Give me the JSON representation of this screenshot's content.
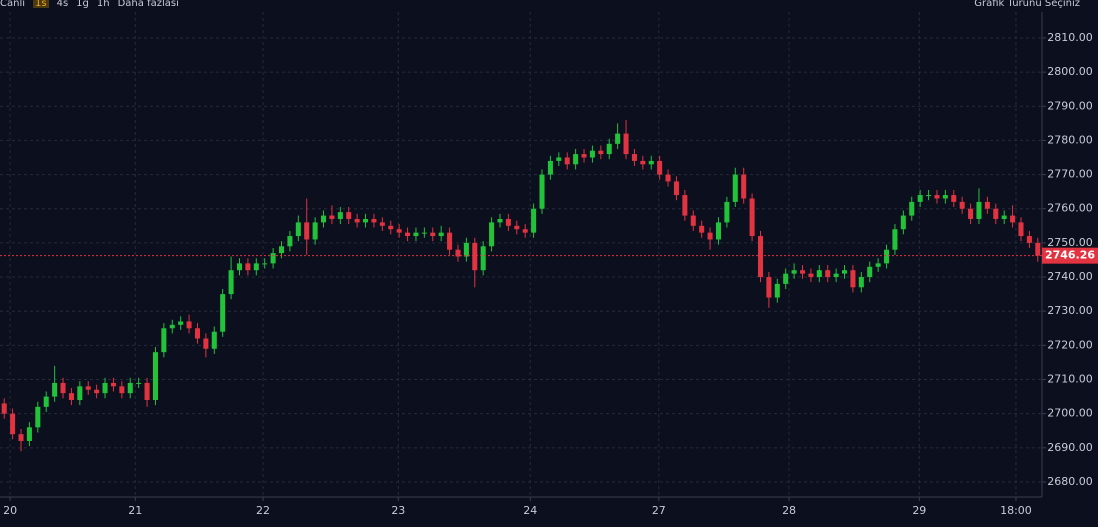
{
  "toolbar": {
    "items": [
      "Canlı",
      "1s",
      "4s",
      "1g",
      "1h",
      "Daha fazlası"
    ],
    "chart_type": "Grafik Türünü Seçiniz"
  },
  "chart_data": {
    "type": "candlestick",
    "up_color": "#22c33a",
    "down_color": "#e23341",
    "grid": true,
    "xlim": [
      0,
      124
    ],
    "xticks": [
      {
        "value": 1.2,
        "label": "20"
      },
      {
        "value": 16.1,
        "label": "21"
      },
      {
        "value": 31.3,
        "label": "22"
      },
      {
        "value": 47.4,
        "label": "23"
      },
      {
        "value": 63.1,
        "label": "24"
      },
      {
        "value": 78.4,
        "label": "27"
      },
      {
        "value": 93.9,
        "label": "28"
      },
      {
        "value": 109.4,
        "label": "29"
      },
      {
        "value": 120.9,
        "label": "18:00"
      }
    ],
    "ylim": [
      2675.6,
      2817.6
    ],
    "yticks": [
      {
        "value": 2680,
        "label": "2680.00"
      },
      {
        "value": 2690,
        "label": "2690.00"
      },
      {
        "value": 2700,
        "label": "2700.00"
      },
      {
        "value": 2710,
        "label": "2710.00"
      },
      {
        "value": 2720,
        "label": "2720.00"
      },
      {
        "value": 2730,
        "label": "2730.00"
      },
      {
        "value": 2740,
        "label": "2740.00"
      },
      {
        "value": 2750,
        "label": "2750.00"
      },
      {
        "value": 2760,
        "label": "2760.00"
      },
      {
        "value": 2770,
        "label": "2770.00"
      },
      {
        "value": 2780,
        "label": "2780.00"
      },
      {
        "value": 2790,
        "label": "2790.00"
      },
      {
        "value": 2800,
        "label": "2800.00"
      },
      {
        "value": 2810,
        "label": "2810.00"
      }
    ],
    "open": [
      2703,
      2700,
      2694,
      2692,
      2696,
      2702,
      2705,
      2709,
      2706,
      2704,
      2708,
      2707,
      2706,
      2709,
      2708,
      2706,
      2709,
      2709,
      2704,
      2718,
      2725,
      2726,
      2727,
      2725,
      2722,
      2719,
      2724,
      2735,
      2742,
      2744,
      2742,
      2744,
      2744,
      2747,
      2749,
      2752,
      2756,
      2751,
      2756,
      2758,
      2757,
      2759,
      2757,
      2756,
      2757,
      2756,
      2755,
      2754,
      2753,
      2752,
      2753,
      2753,
      2752,
      2753,
      2748,
      2746,
      2750,
      2742,
      2749,
      2756,
      2757,
      2755,
      2754,
      2753,
      2760,
      2770,
      2774,
      2775,
      2773,
      2776,
      2775,
      2777,
      2776,
      2779,
      2782,
      2776,
      2774,
      2773,
      2774,
      2770,
      2768,
      2764,
      2758,
      2755,
      2753,
      2751,
      2756,
      2762,
      2770,
      2763,
      2752,
      2740,
      2734,
      2738,
      2741,
      2742,
      2741,
      2740,
      2742,
      2740,
      2741,
      2742,
      2737,
      2740,
      2743,
      2744,
      2748,
      2754,
      2758,
      2762,
      2764,
      2764,
      2763,
      2764,
      2762,
      2760,
      2757,
      2762,
      2760,
      2757,
      2758,
      2756,
      2752,
      2750
    ],
    "high": [
      2704.5,
      2701.5,
      2695.5,
      2697.5,
      2703.5,
      2706.5,
      2714,
      2710.5,
      2707.5,
      2709.5,
      2709.5,
      2708.5,
      2710.5,
      2710.5,
      2709.5,
      2710.5,
      2710.5,
      2710.5,
      2719.5,
      2726.5,
      2727.5,
      2728.5,
      2729,
      2726.5,
      2723.5,
      2725.5,
      2736.5,
      2746,
      2745.5,
      2745.5,
      2745.5,
      2745.5,
      2748.5,
      2750.5,
      2753.5,
      2758,
      2763,
      2757.5,
      2759.5,
      2761,
      2760.5,
      2760.5,
      2758.5,
      2758.5,
      2758.5,
      2757.5,
      2756.5,
      2755.5,
      2754.5,
      2754.5,
      2754.5,
      2754.5,
      2755,
      2754.5,
      2749.5,
      2751.5,
      2751.5,
      2750.5,
      2757.5,
      2758.5,
      2758.5,
      2756.5,
      2755.5,
      2761.5,
      2771.5,
      2775.5,
      2776.5,
      2776.5,
      2777.5,
      2777.5,
      2778.5,
      2778.5,
      2780.5,
      2785,
      2786,
      2777.5,
      2775.5,
      2775.5,
      2775.5,
      2771.5,
      2769.5,
      2765.5,
      2759.5,
      2756.5,
      2754.5,
      2757.5,
      2763.5,
      2772,
      2772,
      2764.5,
      2753.5,
      2741.5,
      2739.5,
      2742.5,
      2744,
      2743.5,
      2742.5,
      2743.5,
      2743.5,
      2742.5,
      2743.5,
      2743.5,
      2741.5,
      2744.5,
      2745.5,
      2749.5,
      2755.5,
      2759.5,
      2763.5,
      2765.5,
      2765.5,
      2765.5,
      2765.5,
      2765.5,
      2763.5,
      2761.5,
      2766,
      2763.5,
      2761.5,
      2759.5,
      2761,
      2757.5,
      2753.5,
      2751.5
    ],
    "low": [
      2698.5,
      2692.5,
      2689,
      2690.5,
      2694.5,
      2700.5,
      2703.5,
      2704.5,
      2702.5,
      2702.5,
      2705.5,
      2704.5,
      2704.5,
      2706.5,
      2704.5,
      2704.5,
      2707.5,
      2702,
      2702.5,
      2716.5,
      2723.5,
      2724.5,
      2723.5,
      2720.5,
      2716.5,
      2717.5,
      2722.5,
      2733.5,
      2740.5,
      2740.5,
      2740.5,
      2742.5,
      2742.5,
      2745.5,
      2747.5,
      2750.5,
      2746.5,
      2749.5,
      2754.5,
      2755.5,
      2755.5,
      2755.5,
      2754.5,
      2754.5,
      2754.5,
      2753.5,
      2752.5,
      2751.5,
      2750.5,
      2750.5,
      2751.5,
      2750.5,
      2750.5,
      2746.5,
      2744.5,
      2744.5,
      2737,
      2740.5,
      2747.5,
      2754.5,
      2753.5,
      2752.5,
      2751.5,
      2751.5,
      2758.5,
      2768.5,
      2772.5,
      2771.5,
      2771.5,
      2773.5,
      2773.5,
      2774.5,
      2774.5,
      2777.5,
      2774.5,
      2772.5,
      2771.5,
      2771.5,
      2768.5,
      2766.5,
      2762.5,
      2756.5,
      2753.5,
      2751.5,
      2748,
      2749.5,
      2754.5,
      2760.5,
      2761.5,
      2750.5,
      2738.5,
      2731,
      2732.5,
      2736.5,
      2739.5,
      2739.5,
      2738.5,
      2738.5,
      2738.5,
      2738.5,
      2739.5,
      2735.5,
      2735.5,
      2738.5,
      2741.5,
      2742.5,
      2746.5,
      2752.5,
      2756.5,
      2760.5,
      2762.5,
      2761.5,
      2761.5,
      2760.5,
      2758.5,
      2755.5,
      2755.5,
      2758.5,
      2755.5,
      2755.5,
      2754.5,
      2750.5,
      2748.5,
      2744.5
    ],
    "close": [
      2700,
      2694,
      2692,
      2696,
      2702,
      2705,
      2709,
      2706,
      2704,
      2708,
      2707,
      2706,
      2709,
      2708,
      2706,
      2709,
      2709,
      2704,
      2718,
      2725,
      2726,
      2727,
      2725,
      2722,
      2719,
      2724,
      2735,
      2742,
      2744,
      2742,
      2744,
      2744,
      2747,
      2749,
      2752,
      2756,
      2751,
      2756,
      2758,
      2757,
      2759,
      2757,
      2756,
      2757,
      2756,
      2755,
      2754,
      2753,
      2752,
      2753,
      2753,
      2752,
      2753,
      2748,
      2746,
      2750,
      2742,
      2749,
      2756,
      2757,
      2755,
      2754,
      2753,
      2760,
      2770,
      2774,
      2775,
      2773,
      2776,
      2775,
      2777,
      2776,
      2779,
      2782,
      2776,
      2774,
      2773,
      2774,
      2770,
      2768,
      2764,
      2758,
      2755,
      2753,
      2751,
      2756,
      2762,
      2770,
      2763,
      2752,
      2740,
      2734,
      2738,
      2741,
      2742,
      2741,
      2740,
      2742,
      2740,
      2741,
      2742,
      2737,
      2740,
      2743,
      2744,
      2748,
      2754,
      2758,
      2762,
      2764,
      2764,
      2763,
      2764,
      2762,
      2760,
      2757,
      2762,
      2760,
      2757,
      2758,
      2756,
      2752,
      2750,
      2746.26
    ]
  }
}
